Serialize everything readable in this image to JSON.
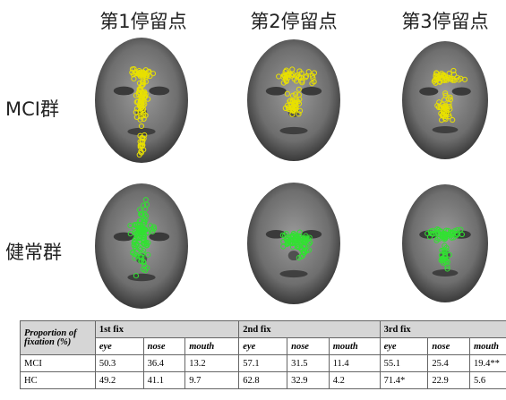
{
  "headers": [
    "第1停留点",
    "第2停留点",
    "第3停留点"
  ],
  "row_labels": [
    "MCI群",
    "健常群"
  ],
  "table": {
    "corner": "Proportion of fixation (%)",
    "groups": [
      "1st fix",
      "2nd fix",
      "3rd fix"
    ],
    "subheaders": [
      "eye",
      "nose",
      "mouth",
      "eye",
      "nose",
      "mouth",
      "eye",
      "nose",
      "mouth"
    ],
    "rows": [
      [
        "MCI",
        "50.3",
        "36.4",
        "13.2",
        "57.1",
        "31.5",
        "11.4",
        "55.1",
        "25.4",
        "19.4**"
      ],
      [
        "HC",
        "49.2",
        "41.1",
        "9.7",
        "62.8",
        "32.9",
        "4.2",
        "71.4*",
        "22.9",
        "5.6"
      ]
    ]
  }
}
